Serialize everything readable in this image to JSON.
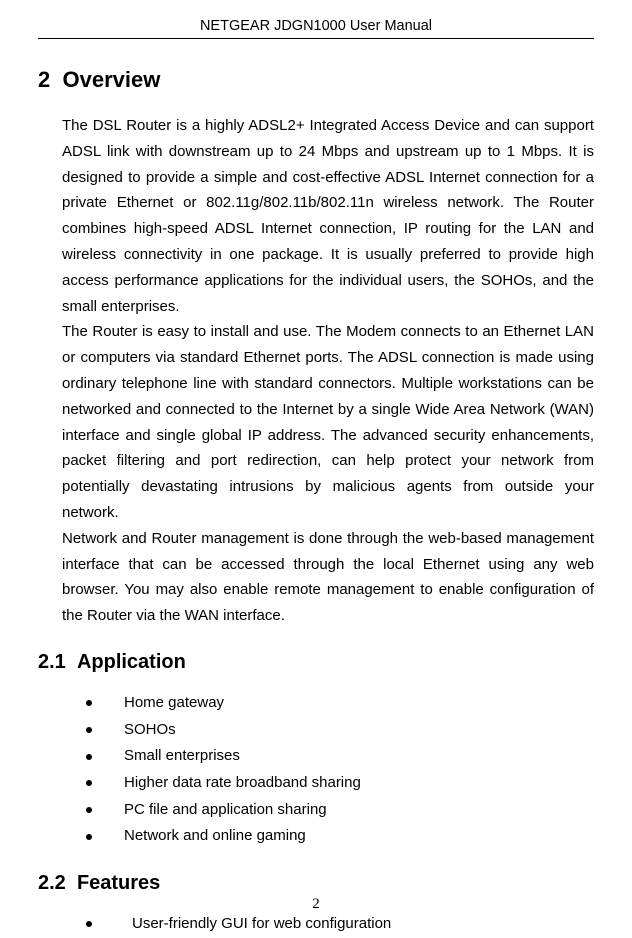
{
  "header": "NETGEAR JDGN1000 User Manual",
  "section1": {
    "number": "2",
    "title": "Overview"
  },
  "para1": "The DSL Router is a highly ADSL2+ Integrated Access Device and can support ADSL link with downstream up to 24 Mbps and upstream up to 1 Mbps. It is designed to provide a simple and cost-effective ADSL Internet connection for a private Ethernet or 802.11g/802.11b/802.11n wireless network. The Router combines high-speed ADSL Internet connection, IP routing for the LAN and wireless connectivity in one package. It is usually preferred to provide high access performance applications for the individual users, the SOHOs, and the small enterprises.",
  "para2": "The Router is easy to install and use. The Modem connects to an Ethernet LAN or computers via standard Ethernet ports. The ADSL connection is made using ordinary telephone line with standard connectors. Multiple workstations can be networked and connected to the Internet by a single Wide Area Network (WAN) interface and single global IP address. The advanced security enhancements, packet filtering and port redirection, can help protect your network from potentially devastating intrusions by malicious agents from outside your network.",
  "para3": "Network and Router management is done through the web-based management interface that can be accessed through the local Ethernet using any web browser. You may also enable remote management to enable configuration of the Router via the WAN interface.",
  "section2": {
    "number": "2.1",
    "title": "Application"
  },
  "applications": [
    "Home gateway",
    "SOHOs",
    "Small enterprises",
    "Higher data rate broadband sharing",
    "PC file and application sharing",
    "Network and online gaming"
  ],
  "section3": {
    "number": "2.2",
    "title": "Features"
  },
  "features": [
    "User-friendly GUI for web configuration"
  ],
  "pageNumber": "2",
  "colors": {
    "text": "#000000",
    "background": "#ffffff"
  }
}
